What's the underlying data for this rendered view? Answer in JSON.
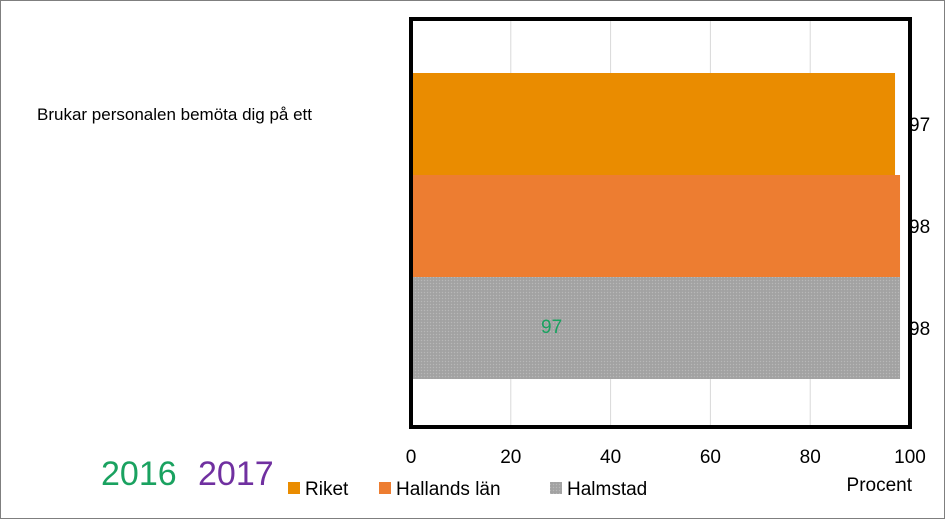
{
  "chart_data": {
    "type": "bar",
    "orientation": "horizontal",
    "categories": [
      "Brukar personalen bemöta dig på ett"
    ],
    "series": [
      {
        "name": "Riket",
        "values": [
          97
        ],
        "color": "#ea8c00"
      },
      {
        "name": "Hallands län",
        "values": [
          98
        ],
        "color": "#ed7d31"
      },
      {
        "name": "Halmstad",
        "values": [
          98
        ],
        "color": "#a5a5a5"
      }
    ],
    "data_labels": [
      "97",
      "98",
      "98"
    ],
    "xlim": [
      0,
      100
    ],
    "xticks": [
      "0",
      "20",
      "40",
      "60",
      "80",
      "100"
    ],
    "xlabel": "Procent",
    "grid": true,
    "legend_position": "bottom",
    "inner_annotation": {
      "text": "97",
      "color": "#1aa260"
    },
    "year_labels": [
      {
        "text": "2016",
        "color": "#1aa260"
      },
      {
        "text": "2017",
        "color": "#7030a0"
      }
    ]
  }
}
